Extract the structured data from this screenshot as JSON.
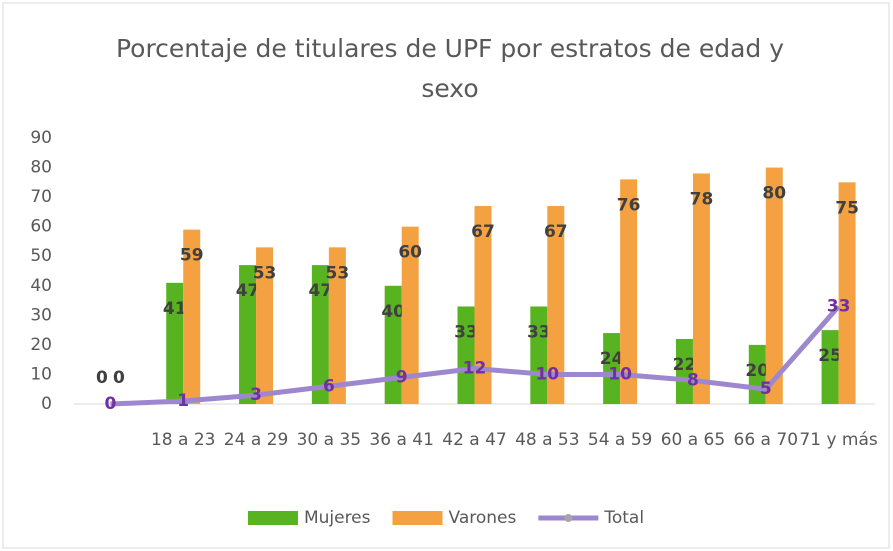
{
  "chart_data": {
    "type": "bar_line",
    "title": "Porcentaje de titulares de UPF por estratos de edad y sexo",
    "categories": [
      null,
      "18 a 23",
      "24 a 29",
      "30 a 35",
      "36 a 41",
      "42 a 47",
      "48 a 53",
      "54 a 59",
      "60 a 65",
      "66 a 70",
      "71 y más"
    ],
    "series": [
      {
        "name": "Mujeres",
        "type": "bar",
        "color": "#58b321",
        "values": [
          0,
          41,
          47,
          47,
          40,
          33,
          33,
          24,
          22,
          20,
          25
        ]
      },
      {
        "name": "Varones",
        "type": "bar",
        "color": "#f4a241",
        "values": [
          0,
          59,
          53,
          53,
          60,
          67,
          67,
          76,
          78,
          80,
          75
        ]
      },
      {
        "name": "Total",
        "type": "line",
        "color": "#9d87cf",
        "values": [
          0,
          1,
          3,
          6,
          9,
          12,
          10,
          10,
          8,
          5,
          33
        ]
      }
    ],
    "ylim": [
      0,
      90
    ],
    "yticks": [
      0,
      10,
      20,
      30,
      40,
      50,
      60,
      70,
      80,
      90
    ],
    "grid": false,
    "legend": "bottom"
  }
}
